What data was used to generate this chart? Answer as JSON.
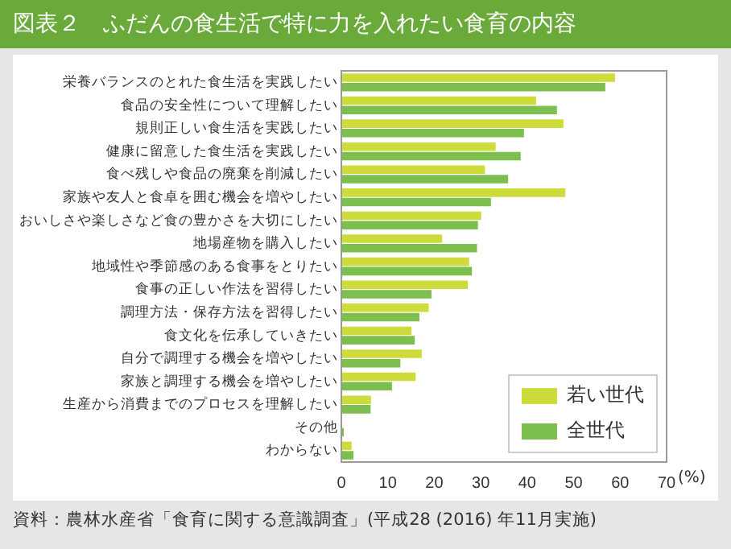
{
  "chart_data": {
    "type": "bar",
    "orientation": "horizontal",
    "title": "図表２　ふだんの食生活で特に力を入れたい食育の内容",
    "categories": [
      "栄養バランスのとれた食生活を実践したい",
      "食品の安全性について理解したい",
      "規則正しい食生活を実践したい",
      "健康に留意した食生活を実践したい",
      "食べ残しや食品の廃棄を削減したい",
      "家族や友人と食卓を囲む機会を増やしたい",
      "おいしさや楽しさなど食の豊かさを大切にしたい",
      "地場産物を購入したい",
      "地域性や季節感のある食事をとりたい",
      "食事の正しい作法を習得したい",
      "調理方法・保存方法を習得したい",
      "食文化を伝承していきたい",
      "自分で調理する機会を増やしたい",
      "家族と調理する機会を増やしたい",
      "生産から消費までのプロセスを理解したい",
      "その他",
      "わからない"
    ],
    "series": [
      {
        "name": "若い世代",
        "color": "#cddc3a",
        "values": [
          58.9,
          41.9,
          47.8,
          33.2,
          30.9,
          48.2,
          30.1,
          21.7,
          27.5,
          27.2,
          18.8,
          15.1,
          17.3,
          16.0,
          6.4,
          0.1,
          2.2
        ]
      },
      {
        "name": "全世代",
        "color": "#7dbf4f",
        "values": [
          56.8,
          46.4,
          39.3,
          38.6,
          35.9,
          32.2,
          29.4,
          29.2,
          28.1,
          19.4,
          16.8,
          15.8,
          12.7,
          10.9,
          6.3,
          0.5,
          2.6
        ]
      }
    ],
    "xlim": [
      0,
      70
    ],
    "xticks": [
      0,
      10,
      20,
      30,
      40,
      50,
      60,
      70
    ],
    "xlabel": "(%)",
    "legend": "bottom right",
    "grid": false,
    "annotations": [
      "資料：農林水産省「食育に関する意識調査」(平成28 (2016) 年11月実施)"
    ]
  }
}
